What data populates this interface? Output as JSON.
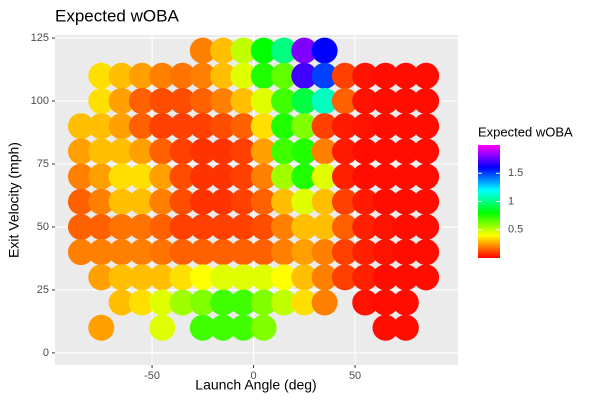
{
  "chart_data": {
    "type": "scatter",
    "title": "Expected wOBA",
    "x_label": "Launch Angle (deg)",
    "y_label": "Exit Velocity (mph)",
    "legend_title": "Expected wOBA",
    "xlim": [
      -97.8,
      100.7
    ],
    "ylim": [
      -4.8,
      126.2
    ],
    "xticks": [
      -50,
      0,
      50
    ],
    "yticks": [
      0,
      25,
      50,
      75,
      100,
      125
    ],
    "grid": true,
    "colorlim": [
      0,
      2.0
    ],
    "colorticks": [
      0.5,
      1.0,
      1.5
    ],
    "colorscale": [
      "#ff0000",
      "#ffff00",
      "#00ff00",
      "#00ffff",
      "#0000ff",
      "#ff00ff"
    ],
    "x": [
      -25,
      -15,
      -5,
      5,
      15,
      25,
      35,
      -75,
      -65,
      -55,
      -45,
      -35,
      -25,
      -15,
      -5,
      5,
      15,
      25,
      35,
      45,
      55,
      65,
      75,
      85,
      -75,
      -65,
      -55,
      -45,
      -35,
      -25,
      -15,
      -5,
      5,
      15,
      25,
      35,
      45,
      55,
      65,
      75,
      85,
      -85,
      -75,
      -65,
      -55,
      -45,
      -35,
      -25,
      -15,
      -5,
      5,
      15,
      25,
      35,
      45,
      55,
      65,
      75,
      85,
      -85,
      -75,
      -65,
      -55,
      -45,
      -35,
      -25,
      -15,
      -5,
      5,
      15,
      25,
      35,
      45,
      55,
      65,
      75,
      85,
      -85,
      -75,
      -65,
      -55,
      -45,
      -35,
      -25,
      -15,
      -5,
      5,
      15,
      25,
      35,
      45,
      55,
      65,
      75,
      85,
      -85,
      -75,
      -65,
      -55,
      -45,
      -35,
      -25,
      -15,
      -5,
      5,
      15,
      25,
      35,
      45,
      55,
      65,
      75,
      85,
      -85,
      -75,
      -65,
      -55,
      -45,
      -35,
      -25,
      -15,
      -5,
      5,
      15,
      25,
      35,
      45,
      55,
      65,
      75,
      85,
      -85,
      -75,
      -65,
      -55,
      -45,
      -35,
      -25,
      -15,
      -5,
      5,
      15,
      25,
      35,
      45,
      55,
      65,
      75,
      85,
      -75,
      -65,
      -55,
      -45,
      -35,
      -25,
      -15,
      -5,
      5,
      15,
      25,
      35,
      45,
      55,
      65,
      75,
      85,
      -65,
      -55,
      -45,
      -35,
      -25,
      -15,
      -5,
      5,
      15,
      25,
      35,
      55,
      65,
      75,
      -75,
      -45,
      -25,
      -15,
      -5,
      5,
      65,
      75
    ],
    "y": [
      120,
      120,
      120,
      120,
      120,
      120,
      120,
      110,
      110,
      110,
      110,
      110,
      110,
      110,
      110,
      110,
      110,
      110,
      110,
      110,
      110,
      110,
      110,
      110,
      100,
      100,
      100,
      100,
      100,
      100,
      100,
      100,
      100,
      100,
      100,
      100,
      100,
      100,
      100,
      100,
      100,
      90,
      90,
      90,
      90,
      90,
      90,
      90,
      90,
      90,
      90,
      90,
      90,
      90,
      90,
      90,
      90,
      90,
      90,
      80,
      80,
      80,
      80,
      80,
      80,
      80,
      80,
      80,
      80,
      80,
      80,
      80,
      80,
      80,
      80,
      80,
      80,
      70,
      70,
      70,
      70,
      70,
      70,
      70,
      70,
      70,
      70,
      70,
      70,
      70,
      70,
      70,
      70,
      70,
      70,
      60,
      60,
      60,
      60,
      60,
      60,
      60,
      60,
      60,
      60,
      60,
      60,
      60,
      60,
      60,
      60,
      60,
      60,
      50,
      50,
      50,
      50,
      50,
      50,
      50,
      50,
      50,
      50,
      50,
      50,
      50,
      50,
      50,
      50,
      50,
      50,
      40,
      40,
      40,
      40,
      40,
      40,
      40,
      40,
      40,
      40,
      40,
      40,
      40,
      40,
      40,
      40,
      40,
      40,
      30,
      30,
      30,
      30,
      30,
      30,
      30,
      30,
      30,
      30,
      30,
      30,
      30,
      30,
      30,
      30,
      30,
      20,
      20,
      20,
      20,
      20,
      20,
      20,
      20,
      20,
      20,
      20,
      20,
      20,
      20,
      10,
      10,
      10,
      10,
      10,
      10,
      10,
      10
    ],
    "values": [
      0.2,
      0.3,
      0.5,
      0.8,
      1.0,
      1.8,
      1.6,
      0.35,
      0.3,
      0.25,
      0.2,
      0.18,
      0.2,
      0.3,
      0.45,
      0.75,
      0.65,
      1.7,
      1.5,
      0.1,
      0.03,
      0.02,
      0.02,
      0.02,
      0.35,
      0.25,
      0.15,
      0.12,
      0.12,
      0.15,
      0.2,
      0.3,
      0.45,
      0.7,
      0.9,
      1.1,
      0.15,
      0.03,
      0.02,
      0.02,
      0.02,
      0.3,
      0.3,
      0.25,
      0.15,
      0.1,
      0.1,
      0.1,
      0.12,
      0.15,
      0.35,
      0.75,
      0.6,
      0.1,
      0.04,
      0.03,
      0.02,
      0.02,
      0.02,
      0.25,
      0.3,
      0.3,
      0.25,
      0.15,
      0.1,
      0.08,
      0.08,
      0.1,
      0.25,
      0.7,
      0.75,
      0.2,
      0.04,
      0.02,
      0.02,
      0.02,
      0.02,
      0.2,
      0.25,
      0.35,
      0.35,
      0.25,
      0.12,
      0.08,
      0.08,
      0.1,
      0.2,
      0.55,
      0.75,
      0.45,
      0.05,
      0.02,
      0.02,
      0.02,
      0.02,
      0.15,
      0.2,
      0.3,
      0.3,
      0.2,
      0.12,
      0.08,
      0.08,
      0.1,
      0.15,
      0.3,
      0.45,
      0.3,
      0.1,
      0.04,
      0.02,
      0.02,
      0.02,
      0.15,
      0.15,
      0.18,
      0.18,
      0.15,
      0.1,
      0.1,
      0.1,
      0.1,
      0.12,
      0.2,
      0.3,
      0.3,
      0.15,
      0.05,
      0.03,
      0.02,
      0.02,
      0.2,
      0.2,
      0.2,
      0.2,
      0.18,
      0.15,
      0.15,
      0.15,
      0.15,
      0.15,
      0.2,
      0.25,
      0.2,
      0.1,
      0.05,
      0.03,
      0.02,
      0.02,
      0.25,
      0.3,
      0.3,
      0.3,
      0.35,
      0.4,
      0.45,
      0.45,
      0.45,
      0.4,
      0.3,
      0.2,
      0.1,
      0.05,
      0.02,
      0.02,
      0.02,
      0.3,
      0.35,
      0.45,
      0.55,
      0.6,
      0.7,
      0.7,
      0.6,
      0.5,
      0.35,
      0.2,
      0.03,
      0.02,
      0.02,
      0.25,
      0.45,
      0.7,
      0.7,
      0.7,
      0.6,
      0.02,
      0.02
    ]
  }
}
